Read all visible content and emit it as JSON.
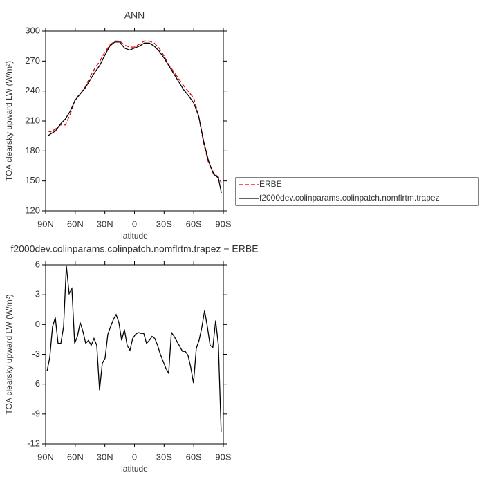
{
  "chart_data": [
    {
      "type": "line",
      "title": "ANN",
      "xlabel": "latitude",
      "ylabel": "TOA clearsky upward LW (W/m²)",
      "x": [
        88,
        85,
        80,
        75,
        70,
        65,
        60,
        55,
        50,
        45,
        40,
        35,
        30,
        25,
        20,
        15,
        10,
        5,
        0,
        -5,
        -10,
        -15,
        -20,
        -25,
        -30,
        -35,
        -40,
        -45,
        -50,
        -55,
        -60,
        -65,
        -70,
        -75,
        -80,
        -85,
        -88
      ],
      "series": [
        {
          "name": "ERBE",
          "color": "#e00000",
          "dashed": true,
          "values": [
            200,
            199,
            202,
            206,
            206,
            217,
            232,
            237,
            244,
            254,
            263,
            270,
            279,
            286,
            290,
            290,
            286,
            284,
            284,
            287,
            290,
            290,
            288,
            283,
            275,
            266,
            259,
            252,
            245,
            239,
            233,
            215,
            188,
            168,
            158,
            154,
            148
          ]
        },
        {
          "name": "f2000dev.colinparams.colinpatch.nomflrtm.trapez",
          "color": "#000000",
          "dashed": false,
          "values": [
            195,
            197,
            200,
            207,
            212,
            220,
            231,
            237,
            243,
            251,
            259,
            266,
            276,
            285,
            289,
            289,
            283,
            281,
            283,
            285,
            288,
            288,
            285,
            280,
            273,
            265,
            257,
            249,
            241,
            235,
            228,
            215,
            190,
            170,
            157,
            153,
            138
          ]
        }
      ],
      "xlim": [
        90,
        -90
      ],
      "xticks": [
        {
          "value": 90,
          "label": "90N"
        },
        {
          "value": 60,
          "label": "60N"
        },
        {
          "value": 30,
          "label": "30N"
        },
        0,
        {
          "value": -30,
          "label": "30S"
        },
        {
          "value": -60,
          "label": "60S"
        },
        {
          "value": -90,
          "label": "90S"
        }
      ],
      "ylim": [
        120,
        300
      ],
      "yticks": [
        120,
        150,
        180,
        210,
        240,
        270,
        300
      ],
      "legend": "outside-right"
    },
    {
      "type": "line",
      "title": "f2000dev.colinparams.colinpatch.nomflrtm.trapez − ERBE",
      "xlabel": "latitude",
      "ylabel": "TOA clearsky upward LW (W/m²)",
      "x": [
        88.6,
        85.8,
        83.0,
        80.2,
        77.4,
        74.6,
        71.8,
        69.0,
        66.2,
        63.4,
        60.6,
        57.8,
        55.0,
        52.2,
        49.4,
        46.6,
        43.8,
        41.0,
        38.2,
        35.4,
        32.6,
        29.8,
        27.0,
        24.2,
        21.4,
        18.6,
        15.8,
        13.0,
        10.2,
        7.4,
        4.6,
        1.8,
        -1.0,
        -3.8,
        -6.6,
        -9.4,
        -12.2,
        -15.0,
        -17.8,
        -20.6,
        -23.4,
        -26.2,
        -29.0,
        -31.8,
        -34.6,
        -37.4,
        -40.2,
        -43.0,
        -45.8,
        -48.6,
        -51.4,
        -54.2,
        -57.0,
        -59.8,
        -62.6,
        -65.4,
        -68.2,
        -71.0,
        -73.8,
        -76.6,
        -79.4,
        -82.2,
        -85.0,
        -87.8
      ],
      "series": [
        {
          "color": "#000000",
          "dashed": false,
          "values": [
            -4.7,
            -3.3,
            -0.2,
            0.7,
            -1.9,
            -1.9,
            -0.2,
            5.9,
            3.1,
            3.6,
            -1.9,
            -1.2,
            0.2,
            -0.7,
            -1.9,
            -1.6,
            -2.1,
            -1.4,
            -2.1,
            -6.6,
            -3.9,
            -3.4,
            -1.0,
            -0.2,
            0.5,
            1.0,
            0.2,
            -1.6,
            -0.5,
            -2.1,
            -2.6,
            -1.4,
            -1.0,
            -0.8,
            -0.9,
            -0.9,
            -1.9,
            -1.6,
            -1.2,
            -1.4,
            -2.1,
            -3.0,
            -3.7,
            -4.4,
            -4.9,
            -0.8,
            -1.2,
            -1.7,
            -2.2,
            -2.7,
            -2.7,
            -3.1,
            -4.3,
            -5.9,
            -2.4,
            -1.6,
            -0.3,
            1.4,
            -0.2,
            -2.1,
            -2.3,
            0.4,
            -2.1,
            -10.8
          ]
        }
      ],
      "xlim": [
        90,
        -90
      ],
      "xticks": [
        {
          "value": 90,
          "label": "90N"
        },
        {
          "value": 60,
          "label": "60N"
        },
        {
          "value": 30,
          "label": "30N"
        },
        0,
        {
          "value": -30,
          "label": "30S"
        },
        {
          "value": -60,
          "label": "60S"
        },
        {
          "value": -90,
          "label": "90S"
        }
      ],
      "ylim": [
        -12,
        6
      ],
      "yticks": [
        -12,
        -9,
        -6,
        -3,
        0,
        3,
        6
      ]
    }
  ]
}
